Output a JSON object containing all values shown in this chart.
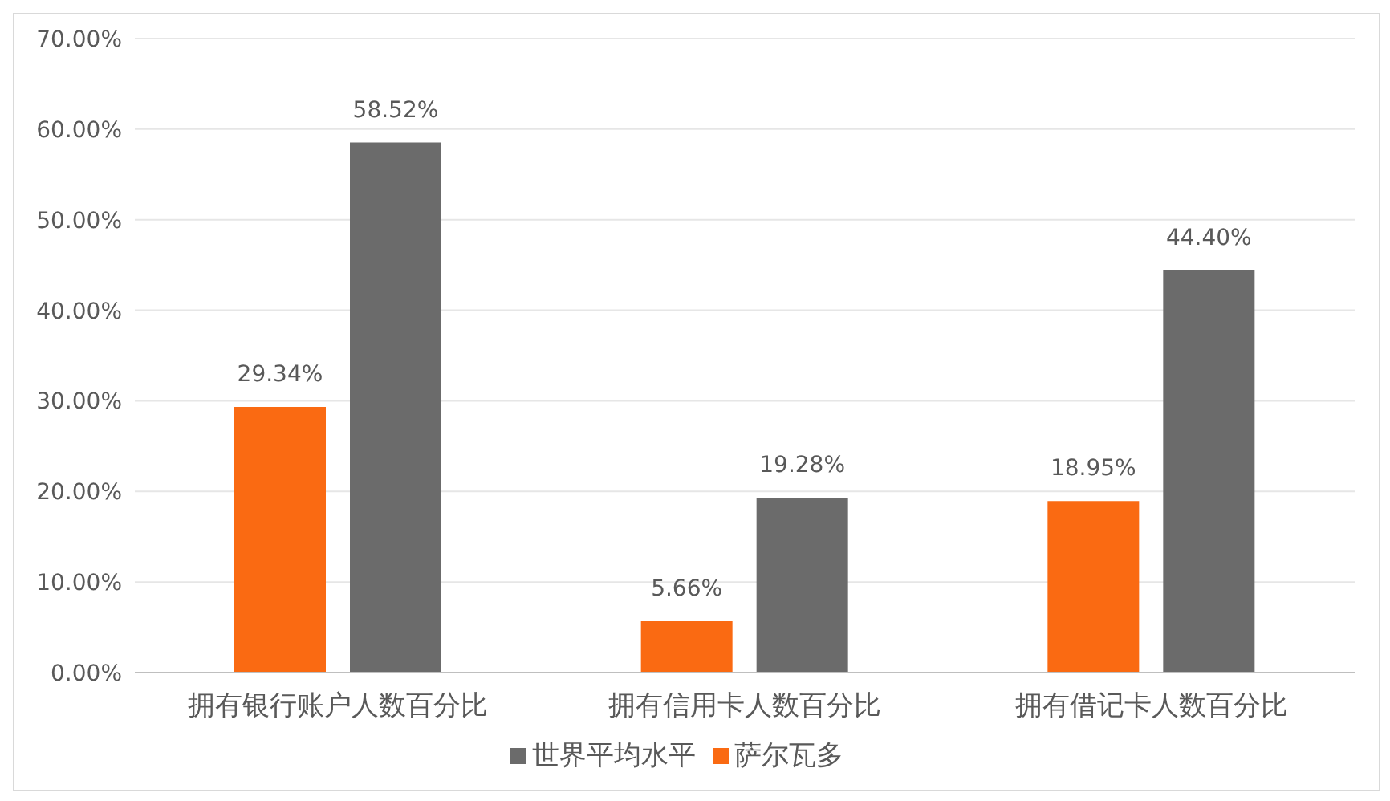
{
  "chart_data": {
    "type": "bar",
    "categories": [
      "拥有银行账户人数百分比",
      "拥有信用卡人数百分比",
      "拥有借记卡人数百分比"
    ],
    "series": [
      {
        "name": "萨尔瓦多",
        "color": "#fa6a12",
        "values": [
          29.34,
          5.66,
          18.95
        ],
        "value_labels": [
          "29.34%",
          "5.66%",
          "18.95%"
        ]
      },
      {
        "name": "世界平均水平",
        "color": "#6b6b6b",
        "values": [
          58.52,
          19.28,
          44.4
        ],
        "value_labels": [
          "58.52%",
          "19.28%",
          "44.40%"
        ]
      }
    ],
    "ylim": [
      0,
      70
    ],
    "yticks": [
      {
        "value": 0,
        "label": "0.00%"
      },
      {
        "value": 10,
        "label": "10.00%"
      },
      {
        "value": 20,
        "label": "20.00%"
      },
      {
        "value": 30,
        "label": "30.00%"
      },
      {
        "value": 40,
        "label": "40.00%"
      },
      {
        "value": 50,
        "label": "50.00%"
      },
      {
        "value": 60,
        "label": "60.00%"
      },
      {
        "value": 70,
        "label": "70.00%"
      }
    ],
    "grid": "y",
    "legend": "bottom"
  }
}
